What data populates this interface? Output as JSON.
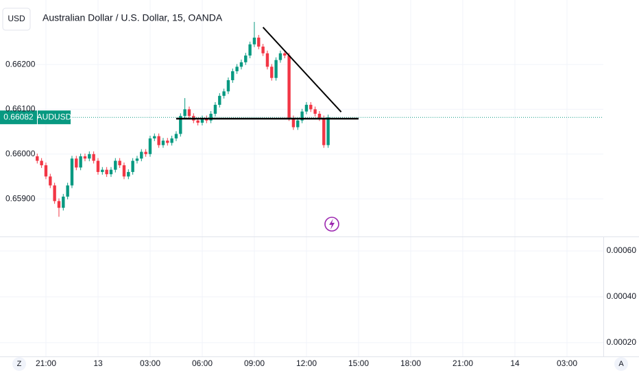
{
  "toolbar": {
    "currency": "USD",
    "left_button": "Z",
    "right_button": "A"
  },
  "chart_data": {
    "type": "candlestick",
    "title": "Australian Dollar / U.S. Dollar, 15, OANDA",
    "x": [
      "20:30",
      "20:45",
      "21:00",
      "21:15",
      "21:30",
      "21:45",
      "22:00",
      "22:15",
      "22:30",
      "22:45",
      "23:00",
      "23:15",
      "23:30",
      "23:45",
      "00:00",
      "00:15",
      "00:30",
      "00:45",
      "01:00",
      "01:15",
      "01:30",
      "01:45",
      "02:00",
      "02:15",
      "02:30",
      "02:45",
      "03:00",
      "03:15",
      "03:30",
      "03:45",
      "04:00",
      "04:15",
      "04:30",
      "04:45",
      "05:00",
      "05:15",
      "05:30",
      "05:45",
      "06:00",
      "06:15",
      "06:30",
      "06:45",
      "07:00",
      "07:15",
      "07:30",
      "07:45",
      "08:00",
      "08:15",
      "08:30",
      "08:45",
      "09:00",
      "09:15",
      "09:30",
      "09:45",
      "10:00",
      "10:15",
      "10:30",
      "10:45",
      "11:00",
      "11:15",
      "11:30",
      "11:45",
      "12:00",
      "12:15",
      "12:30",
      "12:45",
      "13:00",
      "13:15"
    ],
    "series": [
      {
        "name": "AUDUSD",
        "up_color": "#089981",
        "down_color": "#f23645",
        "open": [
          0.65995,
          0.65985,
          0.65975,
          0.6595,
          0.6593,
          0.65895,
          0.6588,
          0.65905,
          0.6593,
          0.6599,
          0.6597,
          0.65995,
          0.6599,
          0.66,
          0.65985,
          0.6596,
          0.65965,
          0.65955,
          0.65965,
          0.65985,
          0.65975,
          0.6595,
          0.6596,
          0.65985,
          0.6599,
          0.66005,
          0.66,
          0.66035,
          0.6604,
          0.6602,
          0.6603,
          0.66025,
          0.66035,
          0.66045,
          0.66085,
          0.661,
          0.66085,
          0.66075,
          0.6607,
          0.6608,
          0.66075,
          0.6609,
          0.6611,
          0.6613,
          0.6614,
          0.66165,
          0.66185,
          0.66195,
          0.66205,
          0.6622,
          0.66245,
          0.6626,
          0.6624,
          0.66225,
          0.66195,
          0.6617,
          0.6621,
          0.66225,
          0.6622,
          0.6608,
          0.6606,
          0.66075,
          0.66095,
          0.6611,
          0.661,
          0.6609,
          0.6608,
          0.6602
        ],
        "high": [
          0.66001,
          0.65991,
          0.65981,
          0.65956,
          0.65936,
          0.65901,
          0.65911,
          0.65936,
          0.65996,
          0.65996,
          0.66001,
          0.66001,
          0.66006,
          0.66006,
          0.65991,
          0.65971,
          0.65971,
          0.65971,
          0.65991,
          0.65991,
          0.65981,
          0.65966,
          0.65991,
          0.65996,
          0.66011,
          0.66011,
          0.66041,
          0.66046,
          0.66046,
          0.66036,
          0.66036,
          0.66041,
          0.66051,
          0.66091,
          0.66125,
          0.66106,
          0.66091,
          0.66081,
          0.66086,
          0.66086,
          0.66096,
          0.66116,
          0.66136,
          0.66146,
          0.66171,
          0.66191,
          0.66201,
          0.66211,
          0.66226,
          0.66251,
          0.66295,
          0.66266,
          0.66246,
          0.66231,
          0.66201,
          0.66216,
          0.66231,
          0.66231,
          0.66226,
          0.66086,
          0.66081,
          0.66101,
          0.66116,
          0.66116,
          0.66106,
          0.66096,
          0.66086,
          0.66088
        ],
        "low": [
          0.65979,
          0.65969,
          0.65944,
          0.65924,
          0.65889,
          0.6586,
          0.65874,
          0.65899,
          0.65924,
          0.65964,
          0.65964,
          0.65984,
          0.65984,
          0.65979,
          0.65954,
          0.65954,
          0.65949,
          0.65949,
          0.65959,
          0.65969,
          0.65944,
          0.65944,
          0.65954,
          0.65979,
          0.65984,
          0.65994,
          0.65994,
          0.66029,
          0.66014,
          0.66014,
          0.66019,
          0.66019,
          0.66029,
          0.66039,
          0.66079,
          0.66079,
          0.66069,
          0.66064,
          0.66064,
          0.66069,
          0.66069,
          0.66084,
          0.66104,
          0.66124,
          0.66134,
          0.66159,
          0.66179,
          0.66189,
          0.66199,
          0.66214,
          0.66239,
          0.66234,
          0.66219,
          0.66189,
          0.66164,
          0.66164,
          0.66204,
          0.66214,
          0.66074,
          0.66054,
          0.66054,
          0.66069,
          0.66089,
          0.66094,
          0.66084,
          0.66074,
          0.66014,
          0.66014
        ],
        "close": [
          0.65985,
          0.65975,
          0.6595,
          0.6593,
          0.65895,
          0.6588,
          0.65905,
          0.6593,
          0.6599,
          0.6597,
          0.65995,
          0.6599,
          0.66,
          0.65985,
          0.6596,
          0.65965,
          0.65955,
          0.65965,
          0.65985,
          0.65975,
          0.6595,
          0.6596,
          0.65985,
          0.6599,
          0.66005,
          0.66,
          0.66035,
          0.6604,
          0.6602,
          0.6603,
          0.66025,
          0.66035,
          0.66045,
          0.66085,
          0.661,
          0.66085,
          0.66075,
          0.6607,
          0.6608,
          0.66075,
          0.6609,
          0.6611,
          0.6613,
          0.6614,
          0.66165,
          0.66185,
          0.66195,
          0.66205,
          0.6622,
          0.66245,
          0.6626,
          0.6624,
          0.66225,
          0.66195,
          0.6617,
          0.6621,
          0.66225,
          0.6622,
          0.6608,
          0.6606,
          0.66075,
          0.66095,
          0.6611,
          0.661,
          0.6609,
          0.6608,
          0.6602,
          0.66082
        ]
      }
    ],
    "ylim": [
      0.65816,
      0.66344
    ],
    "yticks": [
      {
        "value": 0.659,
        "label": "0.65900"
      },
      {
        "value": 0.66,
        "label": "0.66000"
      },
      {
        "value": 0.661,
        "label": "0.66100"
      },
      {
        "value": 0.662,
        "label": "0.66200"
      }
    ],
    "xticks": [
      "21:00",
      "13",
      "03:00",
      "06:00",
      "09:00",
      "12:00",
      "15:00",
      "18:00",
      "21:00",
      "14",
      "03:00"
    ],
    "grid": true,
    "drawings": [
      {
        "x": [
          "04:30",
          "15:00"
        ],
        "y": [
          0.66079,
          0.66079
        ]
      },
      {
        "x": [
          "09:30",
          "14:00"
        ],
        "y": [
          0.66283,
          0.66094
        ]
      }
    ],
    "lower_pane": {
      "ylim": [
        0.00014,
        0.00066
      ],
      "yticks": [
        {
          "value": 0.0006,
          "label": "0.00060"
        },
        {
          "value": 0.0004,
          "label": "0.00040"
        },
        {
          "value": 0.0002,
          "label": "0.00020"
        }
      ]
    }
  }
}
